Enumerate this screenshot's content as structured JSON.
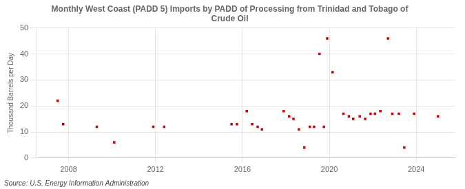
{
  "chart_data": {
    "type": "scatter",
    "title": "Monthly West Coast (PADD 5) Imports by PADD of Processing from Trinidad and Tobago of\nCrude Oil",
    "ylabel": "Thousand Barrels per Day",
    "annotations": [
      "Source: U.S. Energy Information Administration"
    ],
    "x": [
      2007.5,
      2007.75,
      2009.3,
      2010.1,
      2011.9,
      2012.4,
      2015.5,
      2015.75,
      2016.2,
      2016.45,
      2016.7,
      2016.9,
      2017.9,
      2018.15,
      2018.35,
      2018.6,
      2018.85,
      2019.1,
      2019.3,
      2019.55,
      2019.75,
      2019.9,
      2020.15,
      2020.65,
      2020.9,
      2021.1,
      2021.4,
      2021.65,
      2021.9,
      2022.1,
      2022.35,
      2022.7,
      2022.9,
      2023.2,
      2023.45,
      2023.9,
      2025.0
    ],
    "values": [
      22,
      13,
      12,
      6,
      12,
      12,
      13,
      13,
      18,
      13,
      12,
      11,
      18,
      16,
      15,
      11,
      4,
      12,
      12,
      40,
      12,
      46,
      33,
      17,
      16,
      15,
      16,
      15,
      17,
      17,
      18,
      46,
      17,
      17,
      4,
      17,
      16
    ],
    "color": "#cc0000",
    "marker": "square",
    "xlim": [
      2006.5,
      2025.8
    ],
    "xticks": [
      2008,
      2012,
      2016,
      2020,
      2024
    ],
    "ylim": [
      0,
      50
    ],
    "yticks": [
      0,
      10,
      20,
      30,
      40,
      50
    ],
    "grid": true
  }
}
